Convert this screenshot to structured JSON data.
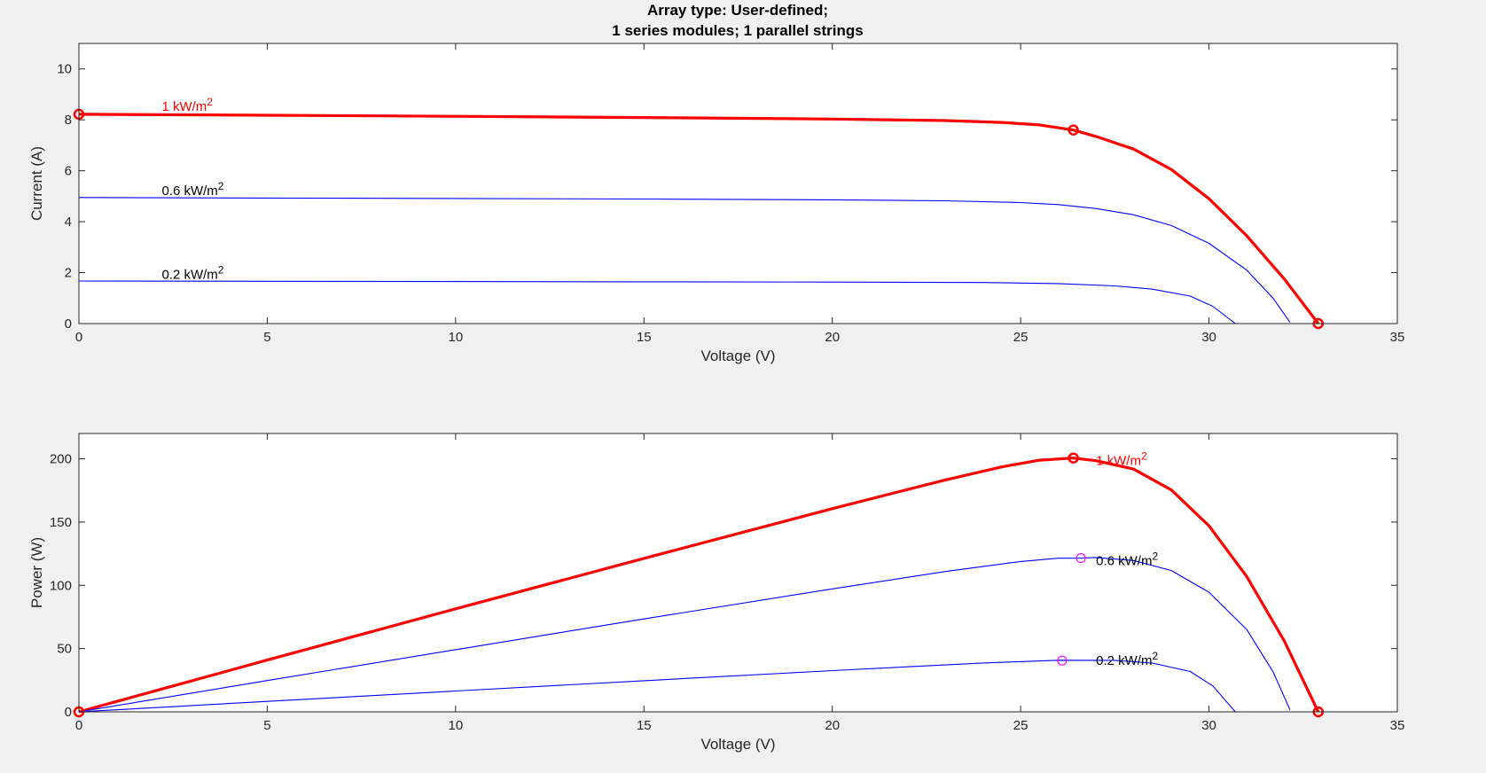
{
  "figure": {
    "title_lines": [
      "Array type: User-defined;",
      "1 series modules; 1 parallel strings"
    ],
    "colors": {
      "highlight": "#ff0000",
      "series": "#0000ff",
      "mpp_marker": "#ff00ff",
      "background": "#f0f0f0",
      "axes_bg": "#ffffff"
    }
  },
  "chart_data": [
    {
      "id": "iv",
      "type": "line",
      "xlabel": "Voltage (V)",
      "ylabel": "Current (A)",
      "xlim": [
        0,
        35
      ],
      "ylim": [
        0,
        11
      ],
      "xticks": [
        0,
        5,
        10,
        15,
        20,
        25,
        30,
        35
      ],
      "yticks": [
        0,
        2,
        4,
        6,
        8,
        10
      ],
      "grid": false,
      "series": [
        {
          "label": "1 kW/m²",
          "label_pos": [
            2.2,
            8.35
          ],
          "color": "#ff0000",
          "emphasis": true,
          "points": [
            [
              0,
              8.22
            ],
            [
              5,
              8.18
            ],
            [
              10,
              8.14
            ],
            [
              15,
              8.09
            ],
            [
              20,
              8.03
            ],
            [
              23,
              7.97
            ],
            [
              24.5,
              7.9
            ],
            [
              25.5,
              7.8
            ],
            [
              26.4,
              7.6
            ],
            [
              27,
              7.35
            ],
            [
              28,
              6.85
            ],
            [
              29,
              6.05
            ],
            [
              30,
              4.9
            ],
            [
              31,
              3.45
            ],
            [
              32,
              1.75
            ],
            [
              32.9,
              0
            ]
          ],
          "markers": [
            [
              0,
              8.22
            ],
            [
              26.4,
              7.6
            ],
            [
              32.9,
              0
            ]
          ]
        },
        {
          "label": "0.6 kW/m²",
          "label_pos": [
            2.2,
            5.05
          ],
          "color": "#0000ff",
          "emphasis": false,
          "points": [
            [
              0,
              4.95
            ],
            [
              5,
              4.93
            ],
            [
              10,
              4.91
            ],
            [
              15,
              4.89
            ],
            [
              20,
              4.86
            ],
            [
              23,
              4.82
            ],
            [
              25,
              4.75
            ],
            [
              26,
              4.67
            ],
            [
              27,
              4.52
            ],
            [
              28,
              4.27
            ],
            [
              29,
              3.85
            ],
            [
              30,
              3.15
            ],
            [
              31,
              2.1
            ],
            [
              31.7,
              1.0
            ],
            [
              32.15,
              0.05
            ]
          ],
          "markers": []
        },
        {
          "label": "0.2 kW/m²",
          "label_pos": [
            2.2,
            1.75
          ],
          "color": "#0000ff",
          "emphasis": false,
          "points": [
            [
              0,
              1.67
            ],
            [
              5,
              1.66
            ],
            [
              10,
              1.65
            ],
            [
              15,
              1.64
            ],
            [
              20,
              1.63
            ],
            [
              24,
              1.61
            ],
            [
              26,
              1.57
            ],
            [
              27.5,
              1.48
            ],
            [
              28.5,
              1.35
            ],
            [
              29.5,
              1.08
            ],
            [
              30.1,
              0.68
            ],
            [
              30.7,
              0
            ]
          ],
          "markers": []
        }
      ]
    },
    {
      "id": "pv",
      "type": "line",
      "xlabel": "Voltage (V)",
      "ylabel": "Power (W)",
      "xlim": [
        0,
        35
      ],
      "ylim": [
        0,
        220
      ],
      "xticks": [
        0,
        5,
        10,
        15,
        20,
        25,
        30,
        35
      ],
      "yticks": [
        0,
        50,
        100,
        150,
        200
      ],
      "grid": false,
      "series": [
        {
          "label": "1 kW/m²",
          "label_pos": [
            27.0,
            195
          ],
          "color": "#ff0000",
          "emphasis": true,
          "points": [
            [
              0,
              0
            ],
            [
              5,
              40.9
            ],
            [
              10,
              81.4
            ],
            [
              15,
              121.3
            ],
            [
              20,
              160.6
            ],
            [
              23,
              183.3
            ],
            [
              24.5,
              193.6
            ],
            [
              25.5,
              198.9
            ],
            [
              26.4,
              200.6
            ],
            [
              27,
              198.5
            ],
            [
              28,
              191.8
            ],
            [
              29,
              175.4
            ],
            [
              30,
              147
            ],
            [
              31,
              107
            ],
            [
              32,
              56
            ],
            [
              32.9,
              0
            ]
          ],
          "markers": [
            [
              0,
              0
            ],
            [
              26.4,
              200.6
            ],
            [
              32.9,
              0
            ]
          ],
          "marker_color": "#ff0000"
        },
        {
          "label": "0.6 kW/m²",
          "label_pos": [
            27.0,
            116
          ],
          "color": "#0000ff",
          "emphasis": false,
          "points": [
            [
              0,
              0
            ],
            [
              5,
              24.7
            ],
            [
              10,
              49.1
            ],
            [
              15,
              73.4
            ],
            [
              20,
              97.2
            ],
            [
              23,
              110.9
            ],
            [
              25,
              118.8
            ],
            [
              26,
              121.4
            ],
            [
              26.6,
              121.5
            ],
            [
              27,
              122
            ],
            [
              28,
              119.6
            ],
            [
              29,
              111.7
            ],
            [
              30,
              94.5
            ],
            [
              31,
              65.1
            ],
            [
              31.7,
              31.7
            ],
            [
              32.15,
              1.6
            ]
          ],
          "markers": [
            [
              26.6,
              121.5
            ]
          ],
          "marker_color": "#ff00ff"
        },
        {
          "label": "0.2 kW/m²",
          "label_pos": [
            27.0,
            37
          ],
          "color": "#0000ff",
          "emphasis": false,
          "points": [
            [
              0,
              0
            ],
            [
              5,
              8.3
            ],
            [
              10,
              16.5
            ],
            [
              15,
              24.6
            ],
            [
              20,
              32.6
            ],
            [
              24,
              38.6
            ],
            [
              26,
              40.8
            ],
            [
              27.5,
              40.7
            ],
            [
              28.5,
              38.5
            ],
            [
              29.5,
              31.9
            ],
            [
              30.1,
              20.5
            ],
            [
              30.7,
              0
            ]
          ],
          "markers": [
            [
              26.1,
              40.5
            ]
          ],
          "marker_color": "#ff00ff"
        }
      ]
    }
  ]
}
